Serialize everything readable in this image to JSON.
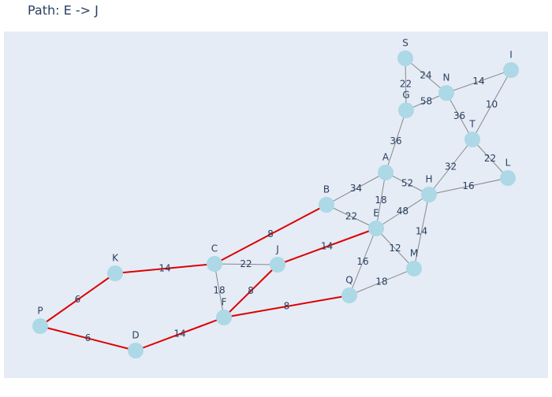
{
  "header": {
    "title": "Path: E -> J"
  },
  "graph": {
    "node_color": "#add8e6",
    "edge_color": "#888888",
    "highlight_color": "#dd0000",
    "nodes": [
      {
        "label": "S"
      },
      {
        "label": "I"
      },
      {
        "label": "N"
      },
      {
        "label": "G"
      },
      {
        "label": "T"
      },
      {
        "label": "A"
      },
      {
        "label": "L"
      },
      {
        "label": "H"
      },
      {
        "label": "B"
      },
      {
        "label": "E"
      },
      {
        "label": "J"
      },
      {
        "label": "C"
      },
      {
        "label": "K"
      },
      {
        "label": "M"
      },
      {
        "label": "Q"
      },
      {
        "label": "F"
      },
      {
        "label": "P"
      },
      {
        "label": "D"
      }
    ],
    "edges": [
      {
        "from": "S",
        "to": "N",
        "weight": 24,
        "highlight": false
      },
      {
        "from": "S",
        "to": "G",
        "weight": 22,
        "highlight": false
      },
      {
        "from": "N",
        "to": "I",
        "weight": 14,
        "highlight": false
      },
      {
        "from": "N",
        "to": "G",
        "weight": 58,
        "highlight": false
      },
      {
        "from": "N",
        "to": "T",
        "weight": 36,
        "highlight": false
      },
      {
        "from": "I",
        "to": "T",
        "weight": 10,
        "highlight": false
      },
      {
        "from": "T",
        "to": "L",
        "weight": 22,
        "highlight": false
      },
      {
        "from": "T",
        "to": "H",
        "weight": 32,
        "highlight": false
      },
      {
        "from": "G",
        "to": "A",
        "weight": 36,
        "highlight": false
      },
      {
        "from": "A",
        "to": "B",
        "weight": 34,
        "highlight": false
      },
      {
        "from": "A",
        "to": "H",
        "weight": 52,
        "highlight": false
      },
      {
        "from": "A",
        "to": "E",
        "weight": 18,
        "highlight": false
      },
      {
        "from": "H",
        "to": "L",
        "weight": 16,
        "highlight": false
      },
      {
        "from": "H",
        "to": "E",
        "weight": 48,
        "highlight": false
      },
      {
        "from": "H",
        "to": "M",
        "weight": 14,
        "highlight": false
      },
      {
        "from": "B",
        "to": "E",
        "weight": 22,
        "highlight": false
      },
      {
        "from": "B",
        "to": "C",
        "weight": 8,
        "highlight": true
      },
      {
        "from": "E",
        "to": "J",
        "weight": 14,
        "highlight": true
      },
      {
        "from": "E",
        "to": "M",
        "weight": 12,
        "highlight": false
      },
      {
        "from": "E",
        "to": "Q",
        "weight": 16,
        "highlight": false
      },
      {
        "from": "C",
        "to": "J",
        "weight": 22,
        "highlight": false
      },
      {
        "from": "C",
        "to": "K",
        "weight": 14,
        "highlight": true
      },
      {
        "from": "C",
        "to": "F",
        "weight": 18,
        "highlight": false
      },
      {
        "from": "J",
        "to": "F",
        "weight": 8,
        "highlight": true
      },
      {
        "from": "Q",
        "to": "M",
        "weight": 18,
        "highlight": false
      },
      {
        "from": "F",
        "to": "Q",
        "weight": 8,
        "highlight": true
      },
      {
        "from": "K",
        "to": "P",
        "weight": 6,
        "highlight": true
      },
      {
        "from": "P",
        "to": "D",
        "weight": 6,
        "highlight": true
      },
      {
        "from": "D",
        "to": "F",
        "weight": 14,
        "highlight": true
      }
    ]
  }
}
